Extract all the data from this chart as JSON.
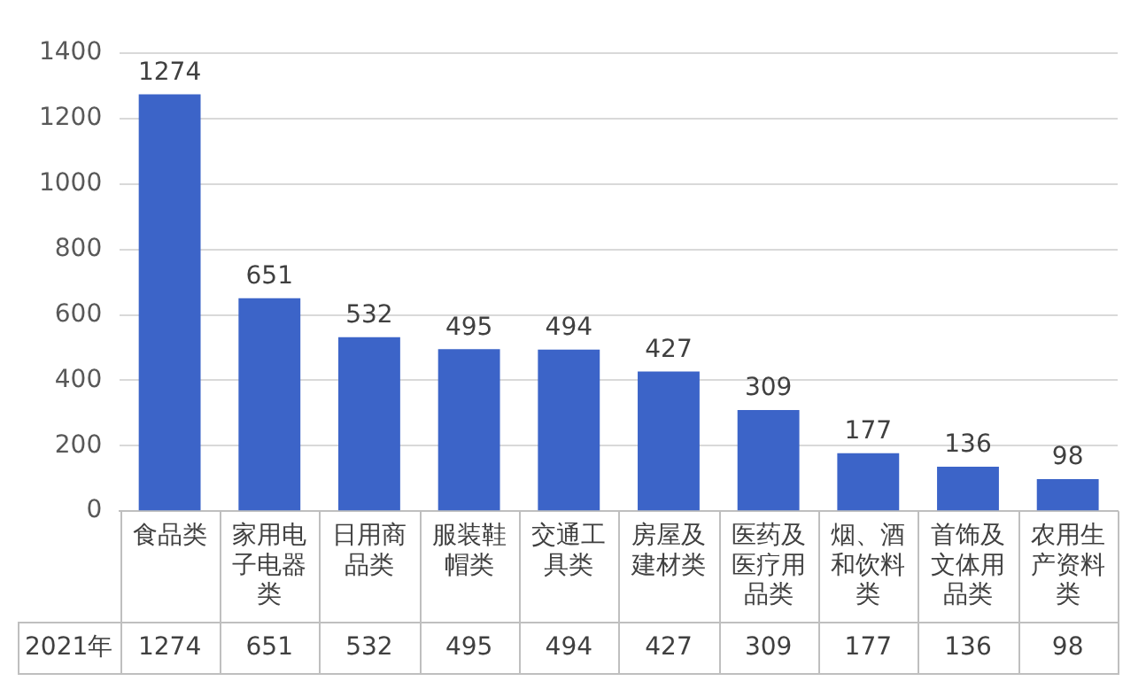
{
  "chart_data": {
    "type": "bar",
    "categories": [
      "食品类",
      "家用电子电器类",
      "日用商品类",
      "服装鞋帽类",
      "交通工具类",
      "房屋及建材类",
      "医药及医疗用品类",
      "烟、酒和饮料类",
      "首饰及文体用品类",
      "农用生产资料类"
    ],
    "series": [
      {
        "name": "2021年",
        "color": "#3c64c8",
        "values": [
          1274,
          651,
          532,
          495,
          494,
          427,
          309,
          177,
          136,
          98
        ],
        "value_labels": [
          "1274",
          "651",
          "532",
          "495",
          "494",
          "427",
          "309",
          "177",
          "136",
          "98"
        ]
      }
    ],
    "ylim": [
      0,
      1400
    ],
    "yticks": [
      0,
      200,
      400,
      600,
      800,
      1000,
      1200,
      1400
    ],
    "grid": "y",
    "legend": false,
    "data_labels": true
  }
}
